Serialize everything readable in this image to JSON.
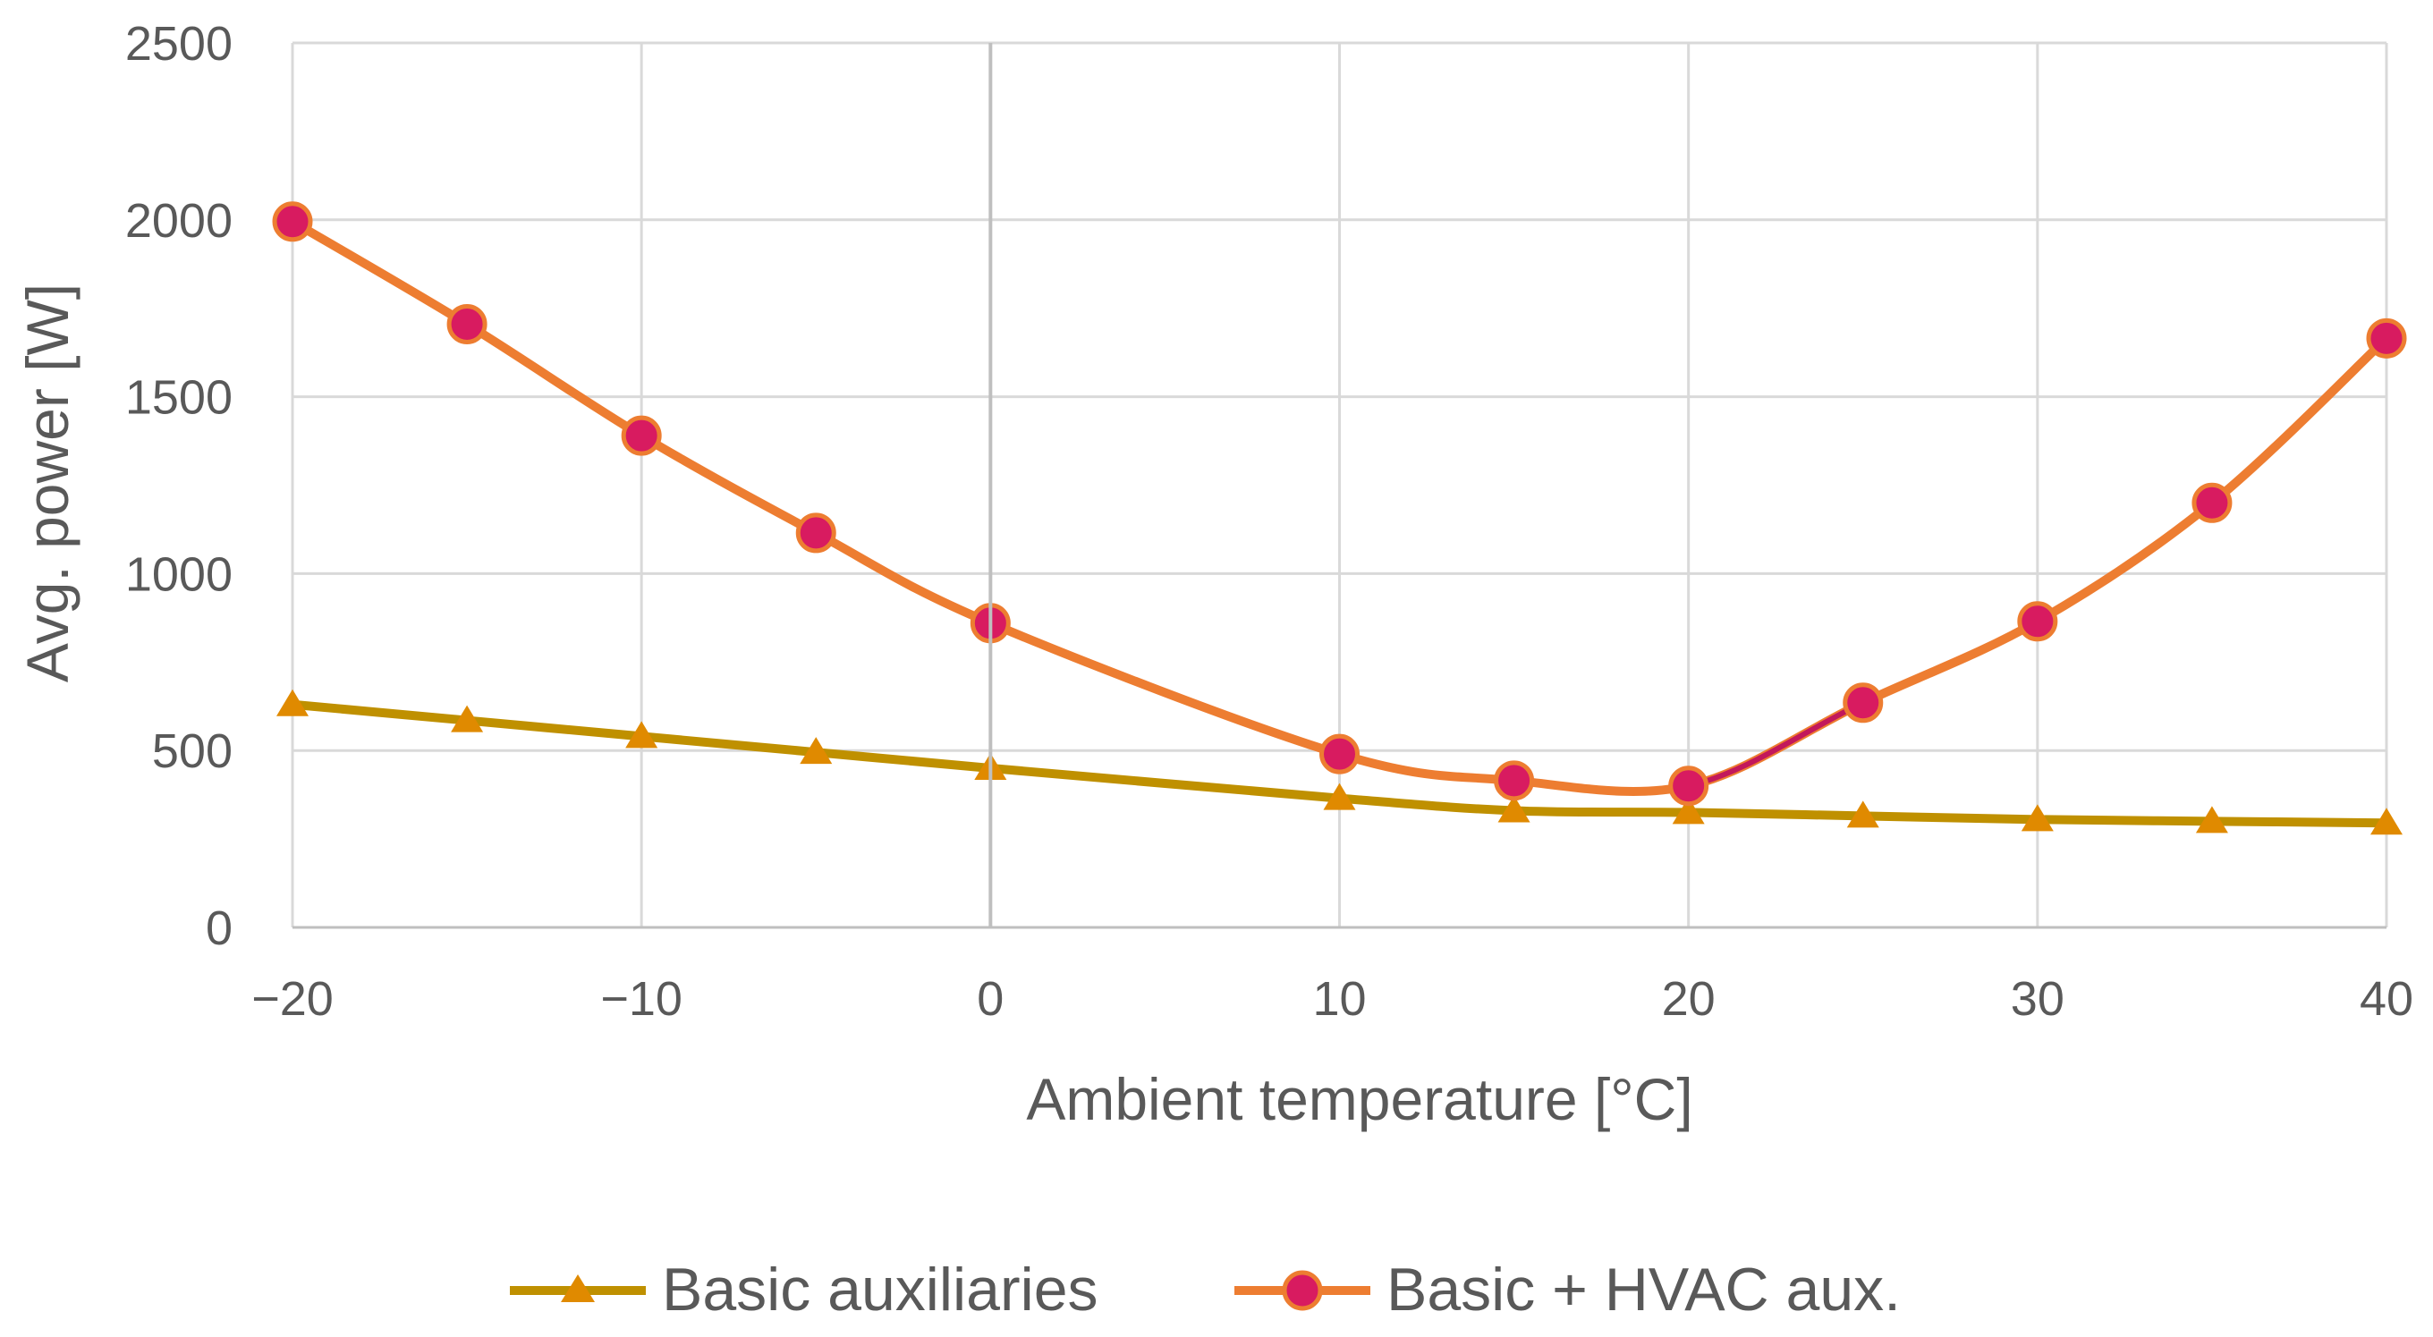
{
  "chart_data": {
    "type": "line",
    "title": "",
    "xlabel": "Ambient temperature [°C]",
    "ylabel": "Avg. power [W]",
    "xlim": [
      -20,
      40
    ],
    "ylim": [
      0,
      2500
    ],
    "xticks": [
      -20,
      -10,
      0,
      10,
      20,
      30,
      40
    ],
    "xtick_labels": [
      "−20",
      "−10",
      "0",
      "10",
      "20",
      "30",
      "40"
    ],
    "yticks": [
      0,
      500,
      1000,
      1500,
      2000,
      2500
    ],
    "ytick_labels": [
      "0",
      "500",
      "1000",
      "1500",
      "2000",
      "2500"
    ],
    "grid": true,
    "legend_position": "bottom",
    "x": [
      -20,
      -15,
      -10,
      -5,
      0,
      10,
      15,
      20,
      25,
      30,
      35,
      40
    ],
    "series": [
      {
        "name": "Basic auxiliaries",
        "marker": "triangle",
        "color": "#BF9000",
        "marker_color": "#E08A00",
        "values": [
          630,
          585,
          540,
          495,
          450,
          365,
          330,
          325,
          315,
          305,
          300,
          295
        ]
      },
      {
        "name": "Basic + HVAC aux.",
        "marker": "circle",
        "color": "#ED7D31",
        "marker_color": "#D81B60",
        "segment_color_20_25": "#C2185B",
        "values": [
          1995,
          1705,
          1390,
          1115,
          860,
          490,
          415,
          400,
          635,
          865,
          1200,
          1665
        ]
      }
    ]
  }
}
